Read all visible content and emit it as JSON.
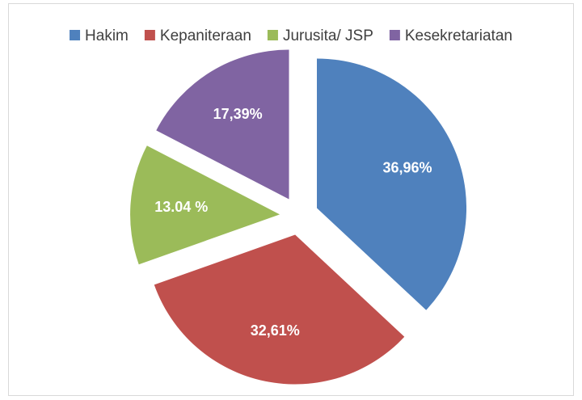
{
  "chart_data": {
    "type": "pie",
    "categories": [
      "Hakim",
      "Kepaniteraan",
      "Jurusita/ JSP",
      "Kesekretariatan"
    ],
    "values": [
      36.96,
      32.61,
      13.04,
      17.39
    ],
    "value_labels": [
      "36,96%",
      "32,61%",
      "13.04 %",
      "17,39%"
    ],
    "colors": [
      "#4f81bd",
      "#c0504d",
      "#9bbb59",
      "#8064a2"
    ],
    "legend": "top"
  }
}
